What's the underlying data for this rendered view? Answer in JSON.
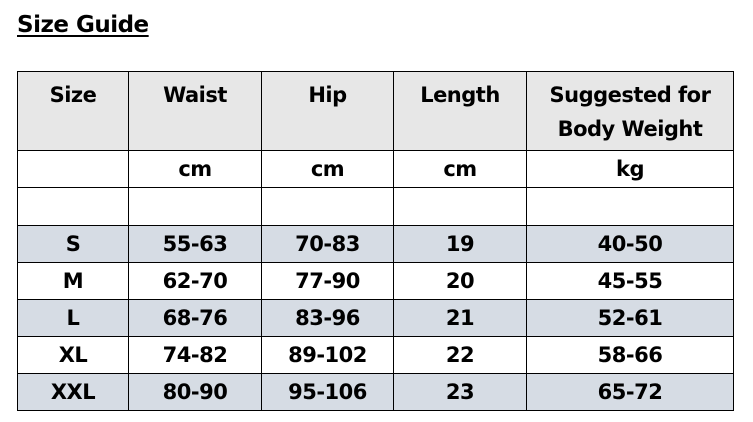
{
  "title": "Size Guide",
  "headers": [
    "Size",
    "Waist",
    "Hip",
    "Length",
    "Suggested for Body Weight"
  ],
  "units": [
    "",
    "cm",
    "cm",
    "cm",
    "kg"
  ],
  "rows": [
    [
      "S",
      "55-63",
      "70-83",
      "19",
      "40-50"
    ],
    [
      "M",
      "62-70",
      "77-90",
      "20",
      "45-55"
    ],
    [
      "L",
      "68-76",
      "83-96",
      "21",
      "52-61"
    ],
    [
      "XL",
      "74-82",
      "89-102",
      "22",
      "58-66"
    ],
    [
      "XXL",
      "80-90",
      "95-106",
      "23",
      "65-72"
    ]
  ],
  "colors": {
    "header_bg": "#e7e7e7",
    "shaded_row_bg": "#d6dce4"
  }
}
